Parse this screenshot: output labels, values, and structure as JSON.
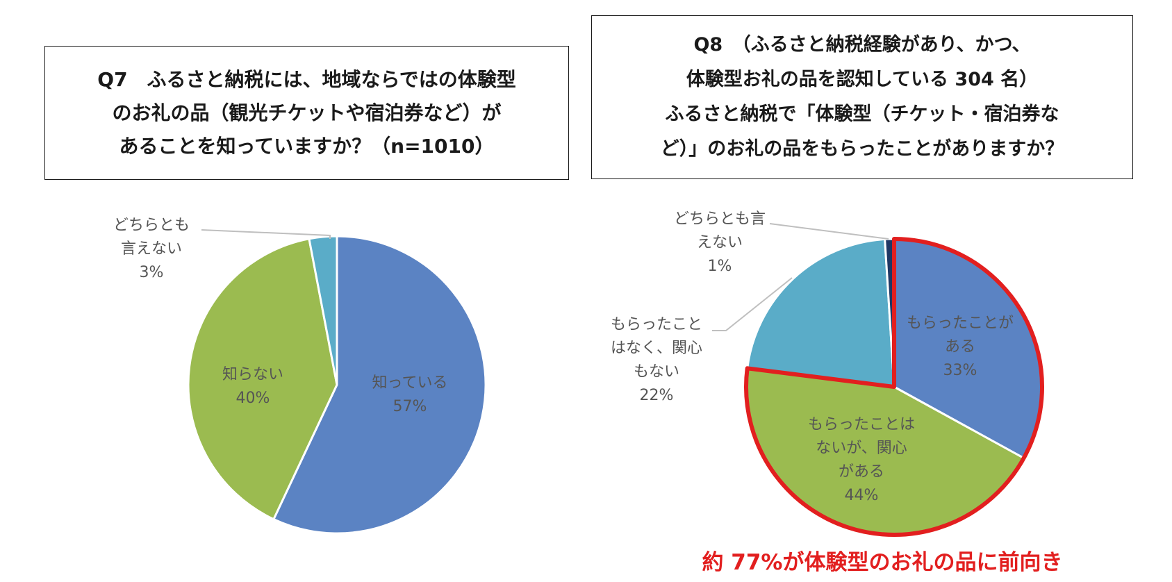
{
  "q7": {
    "lines": [
      "Q7　ふるさと納税には、地域ならではの体験型",
      "のお礼の品（観光チケットや宿泊券など）が",
      "あることを知っていますか？（n=1010）"
    ]
  },
  "q8": {
    "lines": [
      "Q8　（ふるさと納税経験があり、かつ、",
      "体験型お礼の品を認知している 304 名）",
      "ふるさと納税で「体験型（チケット・宿泊券な",
      "ど）」のお礼の品をもらったことがありますか？"
    ]
  },
  "conclusion": "約 77%が体験型のお礼の品に前向き",
  "colors": {
    "blue": "#5b83c3",
    "green": "#9bbb50",
    "teal": "#5aacc8",
    "highlight": "#e21f1f"
  },
  "chart_data": [
    {
      "type": "pie",
      "title": "",
      "start": "12 o'clock, clockwise",
      "slices": [
        {
          "label_lines": [
            "知っている"
          ],
          "value": 57,
          "value_label": "57%",
          "color": "#5b83c3"
        },
        {
          "label_lines": [
            "知らない"
          ],
          "value": 40,
          "value_label": "40%",
          "color": "#9bbb50"
        },
        {
          "label_lines": [
            "どちらとも",
            "言えない"
          ],
          "value": 3,
          "value_label": "3%",
          "color": "#5aacc8"
        }
      ]
    },
    {
      "type": "pie",
      "title": "",
      "start": "12 o'clock, clockwise",
      "highlighted_slices": [
        0,
        1
      ],
      "slices": [
        {
          "label_lines": [
            "もらったことが",
            "ある"
          ],
          "value": 33,
          "value_label": "33%",
          "color": "#5b83c3"
        },
        {
          "label_lines": [
            "もらったことは",
            "ないが、関心",
            "がある"
          ],
          "value": 44,
          "value_label": "44%",
          "color": "#9bbb50"
        },
        {
          "label_lines": [
            "もらったこと",
            "はなく、関心",
            "もない"
          ],
          "value": 22,
          "value_label": "22%",
          "color": "#5aacc8"
        },
        {
          "label_lines": [
            "どちらとも言",
            "えない"
          ],
          "value": 1,
          "value_label": "1%",
          "color": "#1f3864"
        }
      ]
    }
  ]
}
